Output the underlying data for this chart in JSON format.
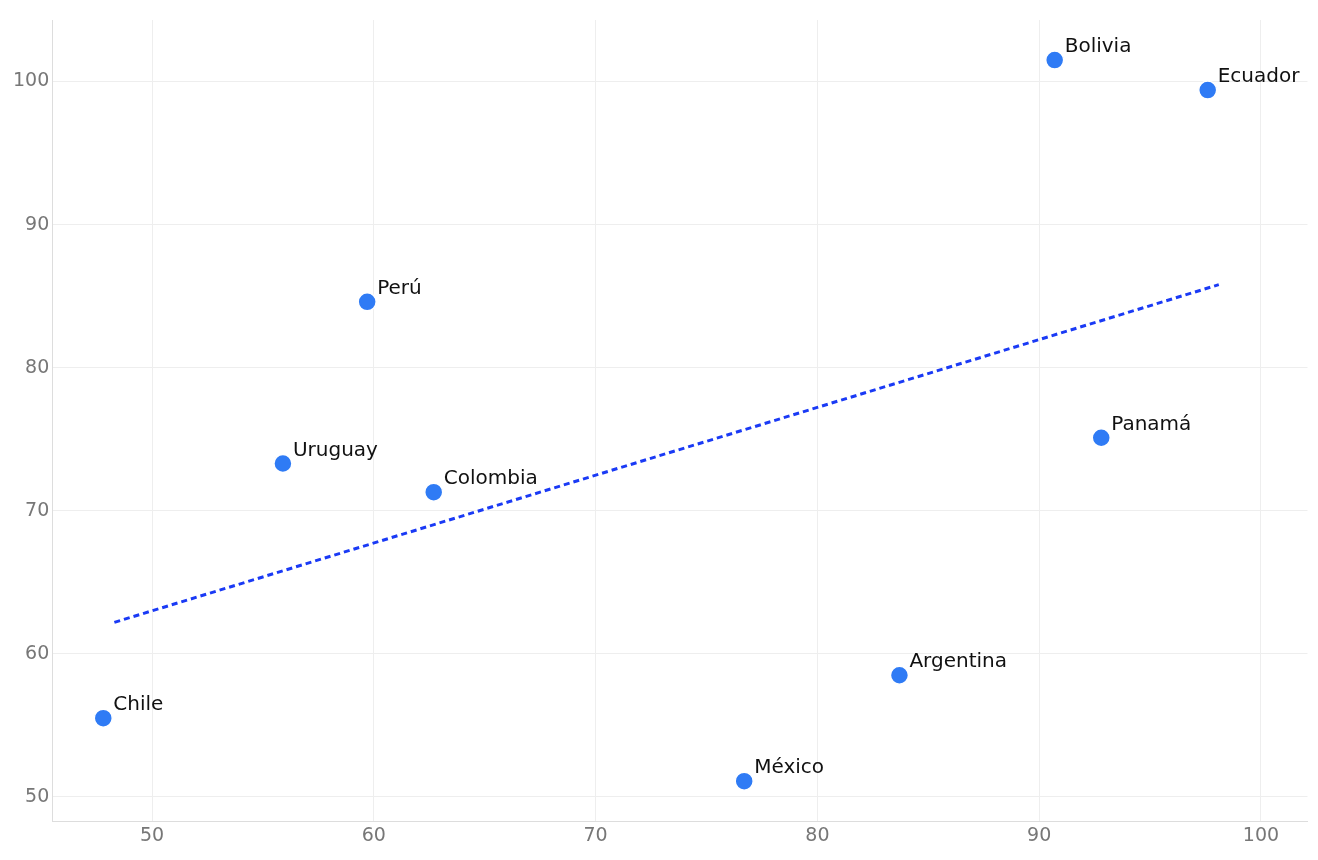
{
  "chart_data": {
    "type": "scatter",
    "xlim": [
      45.5,
      102.1
    ],
    "ylim": [
      48.3,
      104.3
    ],
    "xticks": [
      50,
      60,
      70,
      80,
      90,
      100
    ],
    "yticks": [
      50,
      60,
      70,
      80,
      90,
      100
    ],
    "grid": true,
    "legend": false,
    "series": [
      {
        "marker": "circle",
        "color": "#2f7bf5",
        "x": [
          90.7,
          97.6,
          59.7,
          92.8,
          55.9,
          62.7,
          83.7,
          47.8,
          76.7
        ],
        "values": [
          101.5,
          99.4,
          84.6,
          75.1,
          73.3,
          71.3,
          58.5,
          55.5,
          51.1
        ]
      },
      {
        "type": "line",
        "marker": "none",
        "color": "#1a3af5",
        "line_style": "dashed",
        "x": [
          48.3,
          98.1
        ],
        "values": [
          62.2,
          85.8
        ]
      }
    ],
    "annotations": [
      {
        "text": "Bolivia",
        "x": 90.7,
        "y": 101.5
      },
      {
        "text": "Ecuador",
        "x": 97.6,
        "y": 99.4
      },
      {
        "text": "Perú",
        "x": 59.7,
        "y": 84.6
      },
      {
        "text": "Panamá",
        "x": 92.8,
        "y": 75.1
      },
      {
        "text": "Uruguay",
        "x": 55.9,
        "y": 73.3
      },
      {
        "text": "Colombia",
        "x": 62.7,
        "y": 71.3
      },
      {
        "text": "Argentina",
        "x": 83.7,
        "y": 58.5
      },
      {
        "text": "Chile",
        "x": 47.8,
        "y": 55.5
      },
      {
        "text": "México",
        "x": 76.7,
        "y": 51.1
      }
    ]
  }
}
